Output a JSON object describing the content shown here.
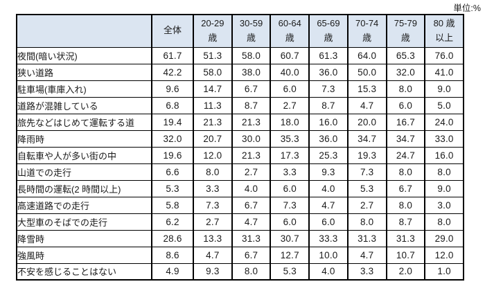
{
  "unit_label": "単位:%",
  "colors": {
    "header_fill": "#dbe5f1",
    "border": "#000000",
    "text": "#1a1a1a",
    "background": "#ffffff"
  },
  "chart_data": {
    "type": "table",
    "unit": "%",
    "columns": [
      "全体",
      "20-29\n歳",
      "30-59\n歳",
      "60-64\n歳",
      "65-69\n歳",
      "70-74\n歳",
      "75-79\n歳",
      "80 歳\n以上"
    ],
    "rows": [
      {
        "label": "夜間(暗い状況)",
        "values": [
          "61.7",
          "51.3",
          "58.0",
          "60.7",
          "61.3",
          "64.0",
          "65.3",
          "76.0"
        ]
      },
      {
        "label": "狭い道路",
        "values": [
          "42.2",
          "58.0",
          "38.0",
          "40.0",
          "36.0",
          "50.0",
          "32.0",
          "41.0"
        ]
      },
      {
        "label": "駐車場(車庫入れ)",
        "values": [
          "9.6",
          "14.7",
          "6.7",
          "6.0",
          "7.3",
          "15.3",
          "8.0",
          "9.0"
        ]
      },
      {
        "label": "道路が混雑している",
        "values": [
          "6.8",
          "11.3",
          "8.7",
          "2.7",
          "8.7",
          "4.7",
          "6.0",
          "5.0"
        ]
      },
      {
        "label": "旅先などはじめて運転する道",
        "values": [
          "19.4",
          "21.3",
          "21.3",
          "18.0",
          "16.0",
          "20.0",
          "16.7",
          "24.0"
        ]
      },
      {
        "label": "降雨時",
        "values": [
          "32.0",
          "20.7",
          "30.0",
          "35.3",
          "36.0",
          "34.7",
          "34.7",
          "33.0"
        ]
      },
      {
        "label": "自転車や人が多い街の中",
        "values": [
          "19.6",
          "12.0",
          "21.3",
          "17.3",
          "25.3",
          "19.3",
          "24.7",
          "16.0"
        ]
      },
      {
        "label": "山道での走行",
        "values": [
          "6.6",
          "8.0",
          "2.7",
          "3.3",
          "9.3",
          "7.3",
          "8.0",
          "8.0"
        ]
      },
      {
        "label": "長時間の運転(2 時間以上)",
        "values": [
          "5.3",
          "3.3",
          "4.0",
          "6.0",
          "4.0",
          "5.3",
          "6.7",
          "9.0"
        ]
      },
      {
        "label": "高速道路での走行",
        "values": [
          "5.8",
          "7.3",
          "6.7",
          "7.3",
          "4.7",
          "2.7",
          "8.0",
          "3.0"
        ]
      },
      {
        "label": "大型車のそばでの走行",
        "values": [
          "6.2",
          "2.7",
          "4.7",
          "6.0",
          "6.0",
          "8.0",
          "8.7",
          "8.0"
        ]
      },
      {
        "label": "降雪時",
        "values": [
          "28.6",
          "13.3",
          "31.3",
          "30.7",
          "33.3",
          "31.3",
          "31.3",
          "29.0"
        ]
      },
      {
        "label": "強風時",
        "values": [
          "8.6",
          "4.7",
          "6.7",
          "12.7",
          "10.0",
          "4.7",
          "10.7",
          "12.0"
        ]
      },
      {
        "label": "不安を感じることはない",
        "values": [
          "4.9",
          "9.3",
          "8.0",
          "5.3",
          "4.0",
          "3.3",
          "2.0",
          "1.0"
        ]
      }
    ]
  }
}
